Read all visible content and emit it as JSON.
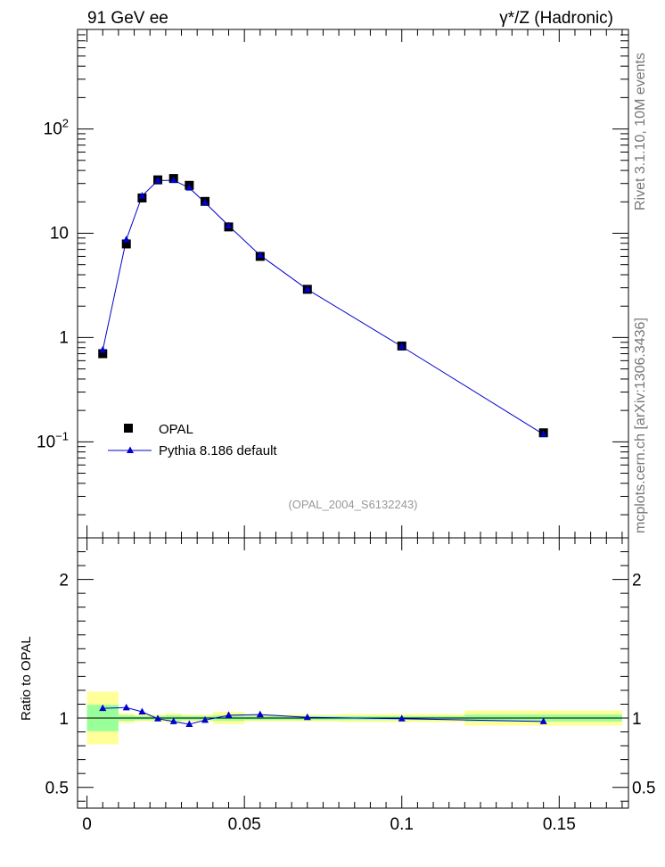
{
  "header": {
    "left": "91 GeV ee",
    "right": "γ*/Z (Hadronic)"
  },
  "side_labels": {
    "rivet": "Rivet 3.1.10,  10M events",
    "source": "mcplots.cern.ch [arXiv:1306.3436]"
  },
  "analysis_id": "(OPAL_2004_S6132243)",
  "legend": {
    "opal": "OPAL",
    "pythia": "Pythia 8.186 default"
  },
  "colors": {
    "mc": "#0000cc",
    "band_inner": "#99ff99",
    "band_outer": "#ffff99"
  },
  "chart_data": [
    {
      "type": "scatter",
      "yscale": "log",
      "xlim": [
        -0.003,
        0.172
      ],
      "ylim": [
        0.012,
        900
      ],
      "y_tick_labels": [
        "10^-1",
        "1",
        "10",
        "10^2"
      ],
      "series": [
        {
          "name": "OPAL",
          "x": [
            0.005,
            0.0125,
            0.0175,
            0.0225,
            0.0275,
            0.0325,
            0.0375,
            0.045,
            0.055,
            0.07,
            0.1,
            0.145
          ],
          "values": [
            0.7,
            7.9,
            21.8,
            32.5,
            33.5,
            28.8,
            20.2,
            11.5,
            6.0,
            2.9,
            0.83,
            0.122
          ]
        },
        {
          "name": "Pythia 8.186 default",
          "x": [
            0.005,
            0.0125,
            0.0175,
            0.0225,
            0.0275,
            0.0325,
            0.0375,
            0.045,
            0.055,
            0.07,
            0.1,
            0.145
          ],
          "values": [
            0.76,
            8.7,
            22.8,
            32.0,
            32.2,
            27.2,
            19.7,
            11.8,
            6.15,
            2.9,
            0.82,
            0.118
          ]
        }
      ]
    },
    {
      "type": "line",
      "ylabel": "Ratio to OPAL",
      "xlim": [
        -0.003,
        0.172
      ],
      "ylim": [
        0.35,
        2.3
      ],
      "x_tick_labels": [
        "0",
        "0.05",
        "0.1",
        "0.15"
      ],
      "y_tick_labels": [
        "0.5",
        "1",
        "2"
      ],
      "series": [
        {
          "name": "Pythia 8.186 default",
          "x": [
            0.005,
            0.0125,
            0.0175,
            0.0225,
            0.0275,
            0.0325,
            0.0375,
            0.045,
            0.055,
            0.07,
            0.1,
            0.145
          ],
          "values": [
            1.07,
            1.075,
            1.045,
            0.995,
            0.975,
            0.955,
            0.985,
            1.02,
            1.025,
            1.005,
            0.995,
            0.975
          ]
        }
      ],
      "bands": [
        {
          "x0": 0.0,
          "x1": 0.01,
          "inner": [
            0.905,
            1.095
          ],
          "outer": [
            0.81,
            1.19
          ]
        },
        {
          "x0": 0.01,
          "x1": 0.015,
          "inner": [
            0.98,
            1.02
          ],
          "outer": [
            0.965,
            1.035
          ]
        },
        {
          "x0": 0.015,
          "x1": 0.02,
          "inner": [
            0.985,
            1.015
          ],
          "outer": [
            0.975,
            1.025
          ]
        },
        {
          "x0": 0.02,
          "x1": 0.025,
          "inner": [
            0.985,
            1.015
          ],
          "outer": [
            0.975,
            1.025
          ]
        },
        {
          "x0": 0.025,
          "x1": 0.03,
          "inner": [
            0.98,
            1.02
          ],
          "outer": [
            0.965,
            1.035
          ]
        },
        {
          "x0": 0.03,
          "x1": 0.035,
          "inner": [
            0.985,
            1.015
          ],
          "outer": [
            0.975,
            1.025
          ]
        },
        {
          "x0": 0.035,
          "x1": 0.04,
          "inner": [
            0.985,
            1.015
          ],
          "outer": [
            0.975,
            1.025
          ]
        },
        {
          "x0": 0.04,
          "x1": 0.05,
          "inner": [
            0.98,
            1.02
          ],
          "outer": [
            0.955,
            1.045
          ]
        },
        {
          "x0": 0.05,
          "x1": 0.06,
          "inner": [
            0.985,
            1.015
          ],
          "outer": [
            0.975,
            1.025
          ]
        },
        {
          "x0": 0.06,
          "x1": 0.08,
          "inner": [
            0.985,
            1.015
          ],
          "outer": [
            0.975,
            1.025
          ]
        },
        {
          "x0": 0.08,
          "x1": 0.12,
          "inner": [
            0.985,
            1.015
          ],
          "outer": [
            0.97,
            1.03
          ]
        },
        {
          "x0": 0.12,
          "x1": 0.17,
          "inner": [
            0.975,
            1.025
          ],
          "outer": [
            0.945,
            1.055
          ]
        }
      ]
    }
  ]
}
